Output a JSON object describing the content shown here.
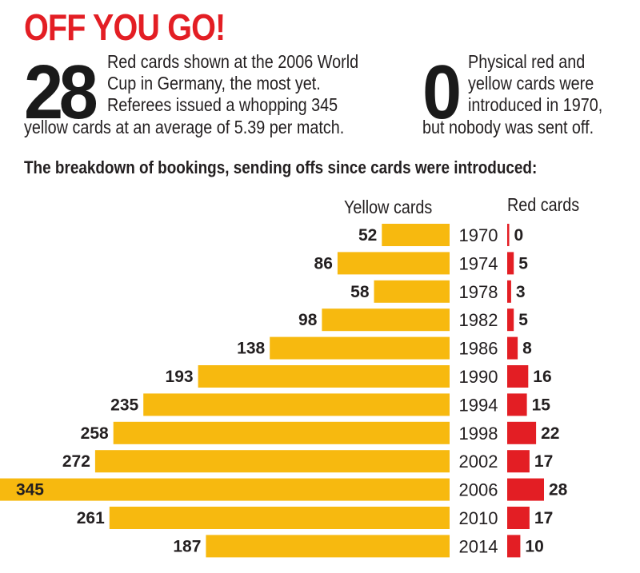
{
  "header": {
    "title": "OFF YOU GO!"
  },
  "stat_left": {
    "number": "28",
    "lines": [
      "Red cards shown at the 2006 World",
      "Cup in Germany, the most yet.",
      "Referees issued a whopping 345",
      "yellow cards at an average of 5.39 per match."
    ]
  },
  "stat_right": {
    "number": "0",
    "lines": [
      "Physical red and",
      "yellow cards were",
      "introduced in 1970,",
      "but nobody was sent off."
    ]
  },
  "subtitle": "The breakdown of bookings, sending offs since cards were introduced:",
  "colors": {
    "title": "#e31e24",
    "yellow": "#f7b90f",
    "red": "#e31e24",
    "text": "#231f20"
  },
  "chart_data": {
    "type": "bar",
    "orientation": "horizontal-butterfly",
    "categories": [
      "1970",
      "1974",
      "1978",
      "1982",
      "1986",
      "1990",
      "1994",
      "1998",
      "2002",
      "2006",
      "2010",
      "2014"
    ],
    "series": [
      {
        "name": "Yellow cards",
        "values": [
          52,
          86,
          58,
          98,
          138,
          193,
          235,
          258,
          272,
          345,
          261,
          187
        ]
      },
      {
        "name": "Red cards",
        "values": [
          0,
          5,
          3,
          5,
          8,
          16,
          15,
          22,
          17,
          28,
          17,
          10
        ]
      }
    ],
    "data_labels": true,
    "grid": false,
    "legend": "none"
  }
}
